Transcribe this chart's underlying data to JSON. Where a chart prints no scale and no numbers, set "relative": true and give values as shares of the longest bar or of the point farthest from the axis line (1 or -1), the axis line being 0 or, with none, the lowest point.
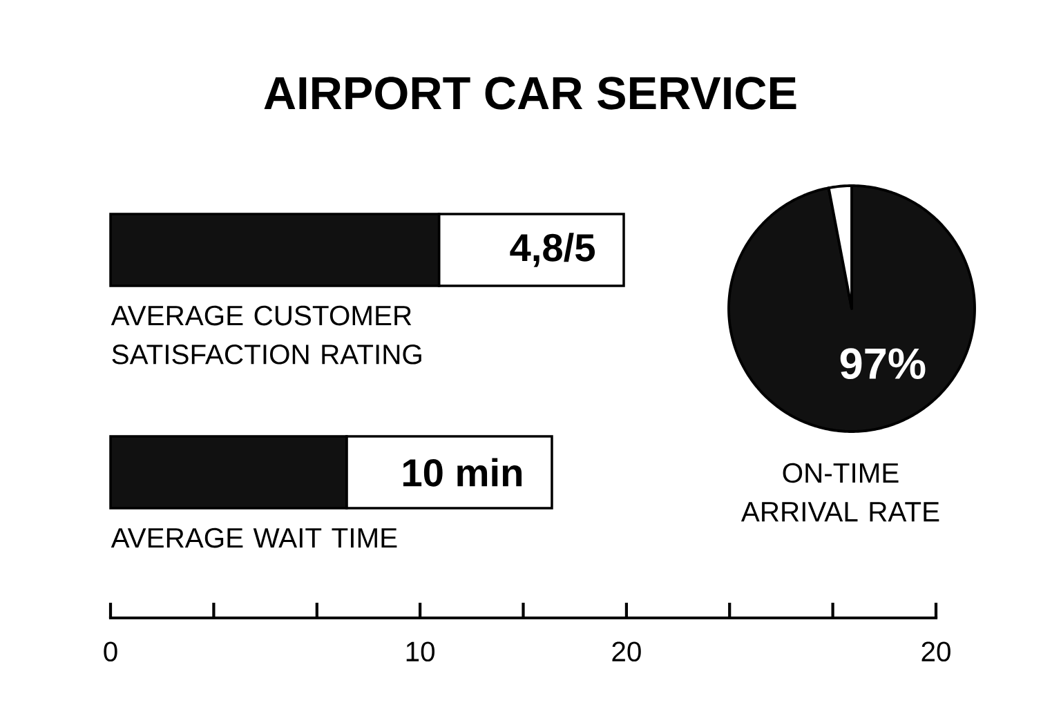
{
  "chart_data": [
    {
      "type": "bar",
      "title": "AIRPORT CAR SERVICE",
      "orientation": "horizontal",
      "stacked": true,
      "relative": true,
      "categories": [
        "AVERAGE CUSTOMER SATISFACTION RATING",
        "AVERAGE WAIT TIME"
      ],
      "series": [
        {
          "color": "#111111",
          "values": [
            0.64,
            0.46
          ]
        },
        {
          "color": "#ffffff",
          "values": [
            0.36,
            0.4
          ]
        }
      ],
      "annotations": [
        "4,8/5",
        "10 min",
        "0",
        "10",
        "20",
        "20"
      ]
    },
    {
      "type": "pie",
      "title": "ON-TIME ARRIVAL RATE",
      "categories": [
        null,
        null
      ],
      "values": [
        97,
        3
      ],
      "colors": [
        "#111111",
        "#ffffff"
      ],
      "value_labels": [
        "97%",
        null
      ]
    }
  ]
}
